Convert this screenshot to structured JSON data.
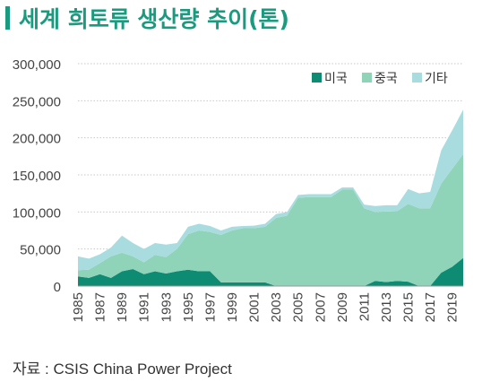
{
  "title": "세계 희토류 생산량 추이(톤)",
  "source": "자료 : CSIS China Power Project",
  "colors": {
    "title": "#1a9a7e",
    "us": "#0e8c73",
    "china": "#8fd3b9",
    "other": "#a9dcdf",
    "grid": "#c8c8c8"
  },
  "chart_data": {
    "type": "area",
    "stacked": true,
    "x": [
      1985,
      1986,
      1987,
      1988,
      1989,
      1990,
      1991,
      1992,
      1993,
      1994,
      1995,
      1996,
      1997,
      1998,
      1999,
      2000,
      2001,
      2002,
      2003,
      2004,
      2005,
      2006,
      2007,
      2008,
      2009,
      2010,
      2011,
      2012,
      2013,
      2014,
      2015,
      2016,
      2017,
      2018,
      2019,
      2020
    ],
    "x_tick_labels": [
      "1985",
      "1987",
      "1989",
      "1991",
      "1993",
      "1995",
      "1997",
      "1999",
      "2001",
      "2003",
      "2005",
      "2007",
      "2009",
      "2011",
      "2013",
      "2015",
      "2017",
      "2019"
    ],
    "y_tick_labels": [
      "0",
      "50,000",
      "100,000",
      "150,000",
      "200,000",
      "250,000",
      "300,000"
    ],
    "ylim": [
      0,
      300000
    ],
    "grid": true,
    "legend_position": "top-right",
    "series": [
      {
        "name": "미국",
        "color": "#0e8c73",
        "values": [
          13000,
          11000,
          16000,
          11000,
          20000,
          23000,
          16000,
          20000,
          17000,
          20000,
          22000,
          20000,
          20000,
          5000,
          5000,
          5000,
          5000,
          5000,
          0,
          0,
          0,
          0,
          0,
          0,
          0,
          0,
          0,
          7000,
          5500,
          7000,
          5900,
          0,
          0,
          18000,
          26000,
          38000
        ]
      },
      {
        "name": "중국",
        "color": "#8fd3b9",
        "values": [
          8500,
          11000,
          15000,
          29000,
          25000,
          17000,
          16000,
          22000,
          22000,
          30000,
          48000,
          55000,
          53000,
          64000,
          70000,
          73000,
          73000,
          75000,
          92000,
          95000,
          119000,
          120000,
          120000,
          120000,
          130000,
          130000,
          105000,
          93000,
          95000,
          94000,
          105000,
          105000,
          105000,
          120000,
          132000,
          140000
        ]
      },
      {
        "name": "기타",
        "color": "#a9dcdf",
        "values": [
          18500,
          15000,
          12000,
          12000,
          23000,
          18000,
          18000,
          16000,
          17000,
          8000,
          10000,
          9000,
          8000,
          6000,
          5000,
          3000,
          3500,
          4000,
          5000,
          5000,
          4000,
          4000,
          4000,
          4000,
          3000,
          3000,
          5000,
          8000,
          8500,
          8000,
          20000,
          20000,
          22000,
          45000,
          52000,
          60000
        ]
      }
    ]
  }
}
